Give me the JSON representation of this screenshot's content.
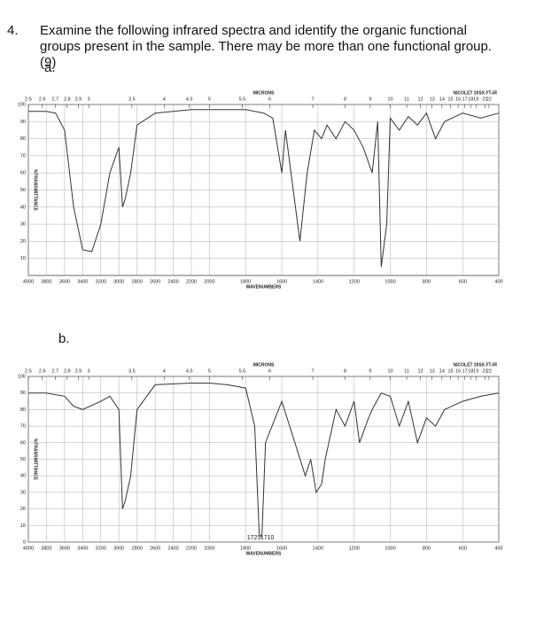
{
  "question": {
    "number": "4.",
    "text": "Examine the following infrared spectra and identify the organic functional groups present in the sample. There may be more than one functional group. (9)",
    "parts": [
      "a.",
      "b."
    ]
  },
  "spectra": [
    {
      "type": "line",
      "color": "#333333",
      "grid": true,
      "x_label": "WAVENUMBERS",
      "x2_label": "MICRONS",
      "y_label": "%TRANSMITTANCE",
      "instrument": "NICOLET 20SX FT-IR",
      "xlim": [
        4000,
        400
      ],
      "xticks": [
        4000,
        3800,
        3600,
        3400,
        3200,
        3000,
        2800,
        2600,
        2400,
        2200,
        2000,
        1800,
        1600,
        1400,
        1200,
        1000,
        800,
        600,
        400
      ],
      "x2ticks": [
        2.5,
        2.6,
        2.7,
        2.8,
        2.9,
        3,
        3.5,
        4,
        4.5,
        5,
        5.5,
        6,
        7,
        8,
        9,
        10,
        11,
        12,
        13,
        14,
        15,
        16,
        17,
        18,
        19,
        21,
        22
      ],
      "ylim": [
        0,
        100
      ],
      "yticks": [
        10,
        20,
        30,
        40,
        50,
        60,
        70,
        80,
        90,
        100
      ],
      "x": [
        4000,
        3800,
        3700,
        3600,
        3500,
        3400,
        3300,
        3200,
        3100,
        3000,
        2960,
        2930,
        2870,
        2800,
        2600,
        2200,
        2000,
        1800,
        1700,
        1650,
        1600,
        1580,
        1500,
        1460,
        1420,
        1380,
        1350,
        1300,
        1250,
        1200,
        1150,
        1100,
        1070,
        1050,
        1020,
        1000,
        950,
        900,
        850,
        800,
        750,
        700,
        600,
        500,
        400
      ],
      "values": [
        96,
        96,
        95,
        85,
        40,
        15,
        14,
        30,
        60,
        75,
        40,
        45,
        60,
        88,
        95,
        97,
        97,
        97,
        95,
        92,
        60,
        85,
        20,
        60,
        85,
        80,
        88,
        80,
        90,
        85,
        75,
        60,
        90,
        5,
        30,
        92,
        85,
        93,
        88,
        95,
        80,
        90,
        95,
        92,
        95
      ]
    },
    {
      "type": "line",
      "color": "#333333",
      "grid": true,
      "x_label": "WAVENUMBERS",
      "x2_label": "MICRONS",
      "y_label": "%TRANSMITTANCE",
      "instrument": "NICOLET 20SX FT-IR",
      "xlim": [
        4000,
        400
      ],
      "xticks": [
        4000,
        3800,
        3600,
        3400,
        3200,
        3000,
        2800,
        2600,
        2400,
        2200,
        2000,
        1800,
        1600,
        1400,
        1200,
        1000,
        800,
        600,
        400
      ],
      "x2ticks": [
        2.5,
        2.6,
        2.7,
        2.8,
        2.9,
        3,
        3.5,
        4,
        4.5,
        5,
        5.5,
        6,
        7,
        8,
        9,
        10,
        11,
        12,
        13,
        14,
        15,
        16,
        17,
        18,
        19,
        21,
        22
      ],
      "ylim": [
        0,
        100
      ],
      "yticks": [
        0,
        10,
        20,
        30,
        40,
        50,
        60,
        70,
        80,
        90,
        100
      ],
      "annotations": [
        1725,
        1710
      ],
      "x": [
        4000,
        3800,
        3600,
        3500,
        3400,
        3200,
        3100,
        3000,
        2960,
        2930,
        2870,
        2800,
        2600,
        2200,
        2000,
        1900,
        1800,
        1750,
        1725,
        1710,
        1690,
        1600,
        1470,
        1440,
        1410,
        1380,
        1360,
        1300,
        1250,
        1200,
        1170,
        1120,
        1100,
        1050,
        1000,
        950,
        900,
        850,
        800,
        750,
        700,
        600,
        500,
        400
      ],
      "values": [
        90,
        90,
        88,
        82,
        80,
        85,
        88,
        80,
        20,
        25,
        40,
        80,
        95,
        96,
        96,
        95,
        93,
        70,
        5,
        3,
        60,
        85,
        40,
        50,
        30,
        35,
        50,
        80,
        70,
        85,
        60,
        75,
        80,
        90,
        88,
        70,
        85,
        60,
        75,
        70,
        80,
        85,
        88,
        90
      ]
    }
  ]
}
